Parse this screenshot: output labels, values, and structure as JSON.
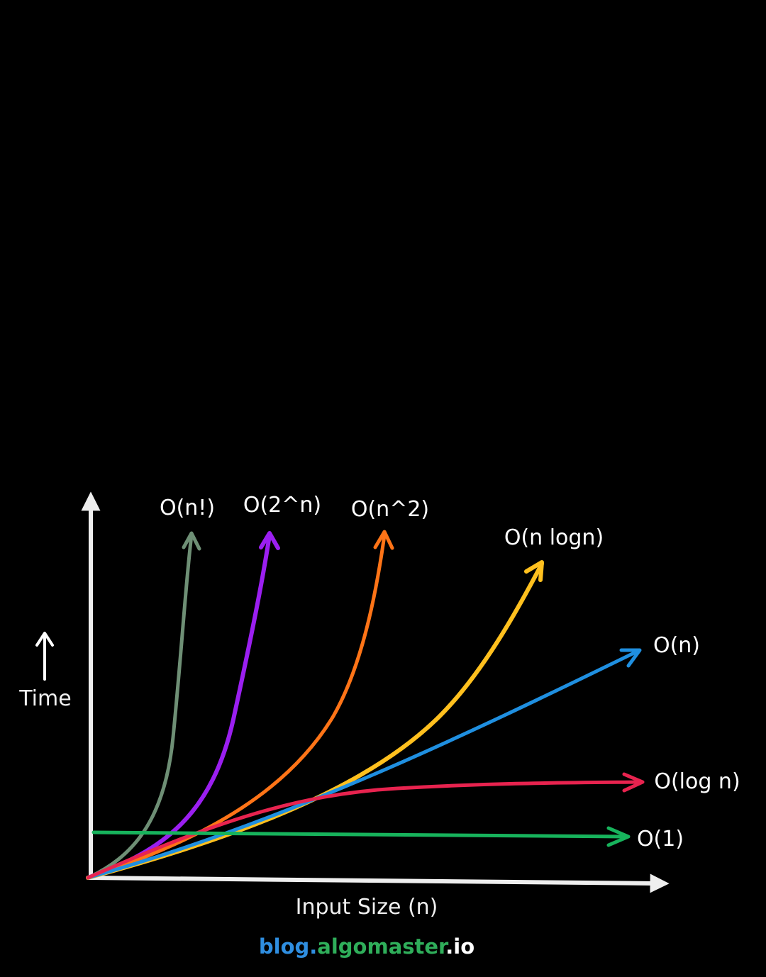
{
  "diagram": {
    "y_axis_label": "Time",
    "x_axis_label": "Input Size (n)",
    "axis_color": "#eeeeee",
    "curves": [
      {
        "id": "factorial",
        "label": "O(n!)",
        "color": "#6e8f75"
      },
      {
        "id": "exponential",
        "label": "O(2^n)",
        "color": "#9b1ff0"
      },
      {
        "id": "quadratic",
        "label": "O(n^2)",
        "color": "#ff7417"
      },
      {
        "id": "linearithmic",
        "label": "O(n logn)",
        "color": "#ffc01e"
      },
      {
        "id": "linear",
        "label": "O(n)",
        "color": "#1f8fe0"
      },
      {
        "id": "logarithmic",
        "label": "O(log n)",
        "color": "#e8234f"
      },
      {
        "id": "constant",
        "label": "O(1)",
        "color": "#17b35c"
      }
    ]
  },
  "credit": {
    "part1": "blog.",
    "part2": "algomaster",
    "part3": ".io",
    "color1": "#2f8ee0",
    "color2": "#2fae5a",
    "color3": "#ffffff"
  }
}
